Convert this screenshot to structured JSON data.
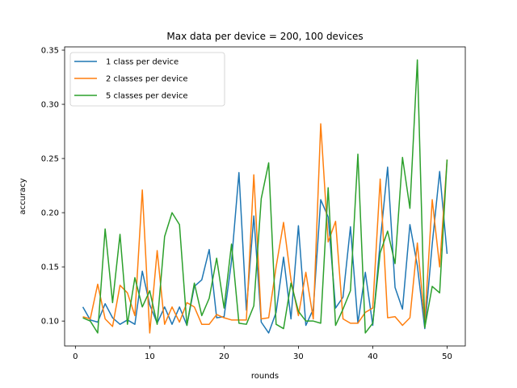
{
  "chart_data": {
    "type": "line",
    "title": "Max data per device = 200, 100 devices",
    "xlabel": "rounds",
    "ylabel": "accuracy",
    "xlim": [
      -1.45,
      52.45
    ],
    "ylim": [
      0.077,
      0.353
    ],
    "xticks": [
      0,
      10,
      20,
      30,
      40,
      50
    ],
    "xtick_labels": [
      "0",
      "10",
      "20",
      "30",
      "40",
      "50"
    ],
    "yticks": [
      0.1,
      0.15,
      0.2,
      0.25,
      0.3,
      0.35
    ],
    "ytick_labels": [
      "0.10",
      "0.15",
      "0.20",
      "0.25",
      "0.30",
      "0.35"
    ],
    "grid": false,
    "legend_position": "upper-left",
    "x": [
      1,
      2,
      3,
      4,
      5,
      6,
      7,
      8,
      9,
      10,
      11,
      12,
      13,
      14,
      15,
      16,
      17,
      18,
      19,
      20,
      21,
      22,
      23,
      24,
      25,
      26,
      27,
      28,
      29,
      30,
      31,
      32,
      33,
      34,
      35,
      36,
      37,
      38,
      39,
      40,
      41,
      42,
      43,
      44,
      45,
      46,
      47,
      48,
      49,
      50
    ],
    "series": [
      {
        "name": "1 class per device",
        "color": "#1f77b4",
        "values": [
          0.113,
          0.101,
          0.099,
          0.116,
          0.103,
          0.097,
          0.101,
          0.097,
          0.146,
          0.115,
          0.098,
          0.113,
          0.097,
          0.113,
          0.096,
          0.132,
          0.138,
          0.166,
          0.103,
          0.104,
          0.155,
          0.237,
          0.11,
          0.197,
          0.099,
          0.089,
          0.108,
          0.159,
          0.102,
          0.188,
          0.096,
          0.111,
          0.212,
          0.196,
          0.112,
          0.122,
          0.187,
          0.098,
          0.145,
          0.096,
          0.173,
          0.242,
          0.131,
          0.111,
          0.189,
          0.151,
          0.093,
          0.171,
          0.238,
          0.162
        ]
      },
      {
        "name": "2 classes per device",
        "color": "#ff7f0e",
        "values": [
          0.104,
          0.102,
          0.134,
          0.102,
          0.095,
          0.133,
          0.126,
          0.105,
          0.221,
          0.089,
          0.165,
          0.097,
          0.113,
          0.099,
          0.117,
          0.113,
          0.097,
          0.097,
          0.106,
          0.103,
          0.101,
          0.101,
          0.101,
          0.235,
          0.102,
          0.103,
          0.15,
          0.191,
          0.138,
          0.105,
          0.145,
          0.102,
          0.282,
          0.173,
          0.192,
          0.102,
          0.098,
          0.098,
          0.108,
          0.112,
          0.231,
          0.103,
          0.104,
          0.096,
          0.103,
          0.172,
          0.099,
          0.212,
          0.15,
          0.249
        ]
      },
      {
        "name": "5 classes per device",
        "color": "#2ca02c",
        "values": [
          0.103,
          0.1,
          0.089,
          0.185,
          0.117,
          0.18,
          0.097,
          0.14,
          0.113,
          0.128,
          0.097,
          0.178,
          0.2,
          0.189,
          0.096,
          0.135,
          0.105,
          0.121,
          0.158,
          0.112,
          0.171,
          0.098,
          0.097,
          0.114,
          0.213,
          0.246,
          0.097,
          0.093,
          0.135,
          0.109,
          0.1,
          0.1,
          0.098,
          0.223,
          0.096,
          0.111,
          0.128,
          0.254,
          0.089,
          0.098,
          0.163,
          0.183,
          0.153,
          0.251,
          0.204,
          0.341,
          0.094,
          0.132,
          0.126,
          0.249
        ]
      }
    ]
  }
}
